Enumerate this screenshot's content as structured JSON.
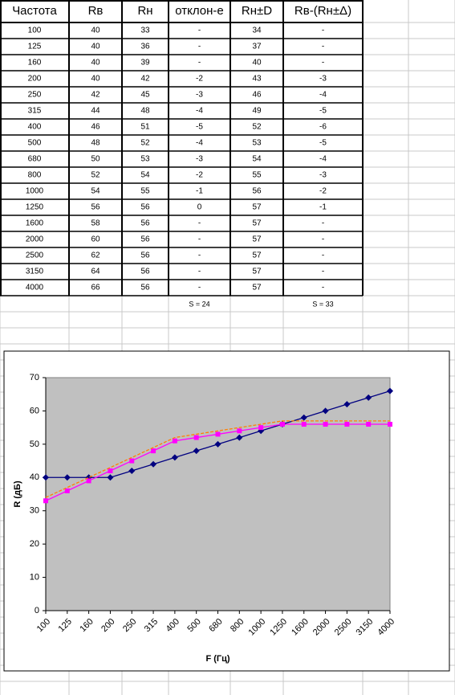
{
  "table": {
    "header": [
      "Частота",
      "Rв",
      "Rн",
      "отклон-е",
      "Rн±D",
      "Rв-(Rн±Δ)"
    ],
    "rows": [
      [
        "100",
        "40",
        "33",
        "-",
        "34",
        "-"
      ],
      [
        "125",
        "40",
        "36",
        "-",
        "37",
        "-"
      ],
      [
        "160",
        "40",
        "39",
        "-",
        "40",
        "-"
      ],
      [
        "200",
        "40",
        "42",
        "-2",
        "43",
        "-3"
      ],
      [
        "250",
        "42",
        "45",
        "-3",
        "46",
        "-4"
      ],
      [
        "315",
        "44",
        "48",
        "-4",
        "49",
        "-5"
      ],
      [
        "400",
        "46",
        "51",
        "-5",
        "52",
        "-6"
      ],
      [
        "500",
        "48",
        "52",
        "-4",
        "53",
        "-5"
      ],
      [
        "680",
        "50",
        "53",
        "-3",
        "54",
        "-4"
      ],
      [
        "800",
        "52",
        "54",
        "-2",
        "55",
        "-3"
      ],
      [
        "1000",
        "54",
        "55",
        "-1",
        "56",
        "-2"
      ],
      [
        "1250",
        "56",
        "56",
        "0",
        "57",
        "-1"
      ],
      [
        "1600",
        "58",
        "56",
        "-",
        "57",
        "-"
      ],
      [
        "2000",
        "60",
        "56",
        "-",
        "57",
        "-"
      ],
      [
        "2500",
        "62",
        "56",
        "-",
        "57",
        "-"
      ],
      [
        "3150",
        "64",
        "56",
        "-",
        "57",
        "-"
      ],
      [
        "4000",
        "66",
        "56",
        "-",
        "57",
        "-"
      ]
    ],
    "footer": [
      "S = 24",
      "S = 33"
    ]
  },
  "chart_data": {
    "type": "line",
    "x_label": "F (Гц)",
    "y_label": "R (дБ)",
    "categories": [
      "100",
      "125",
      "160",
      "200",
      "250",
      "315",
      "400",
      "500",
      "680",
      "800",
      "1000",
      "1250",
      "1600",
      "2000",
      "2500",
      "3150",
      "4000"
    ],
    "series": [
      {
        "color": "#000080",
        "marker": "diamond",
        "values": [
          40,
          40,
          40,
          40,
          42,
          44,
          46,
          48,
          50,
          52,
          54,
          56,
          58,
          60,
          62,
          64,
          66
        ]
      },
      {
        "color": "#ff00ff",
        "marker": "square",
        "values": [
          33,
          36,
          39,
          42,
          45,
          48,
          51,
          52,
          53,
          54,
          55,
          56,
          56,
          56,
          56,
          56,
          56
        ]
      },
      {
        "color": "#ff8000",
        "dashed": true,
        "values": [
          34,
          37,
          40,
          43,
          46,
          49,
          52,
          53,
          54,
          55,
          56,
          57,
          57,
          57,
          57,
          57,
          57
        ]
      }
    ],
    "ylim": [
      0,
      70
    ],
    "yticks": [
      0,
      10,
      20,
      30,
      40,
      50,
      60,
      70
    ]
  }
}
